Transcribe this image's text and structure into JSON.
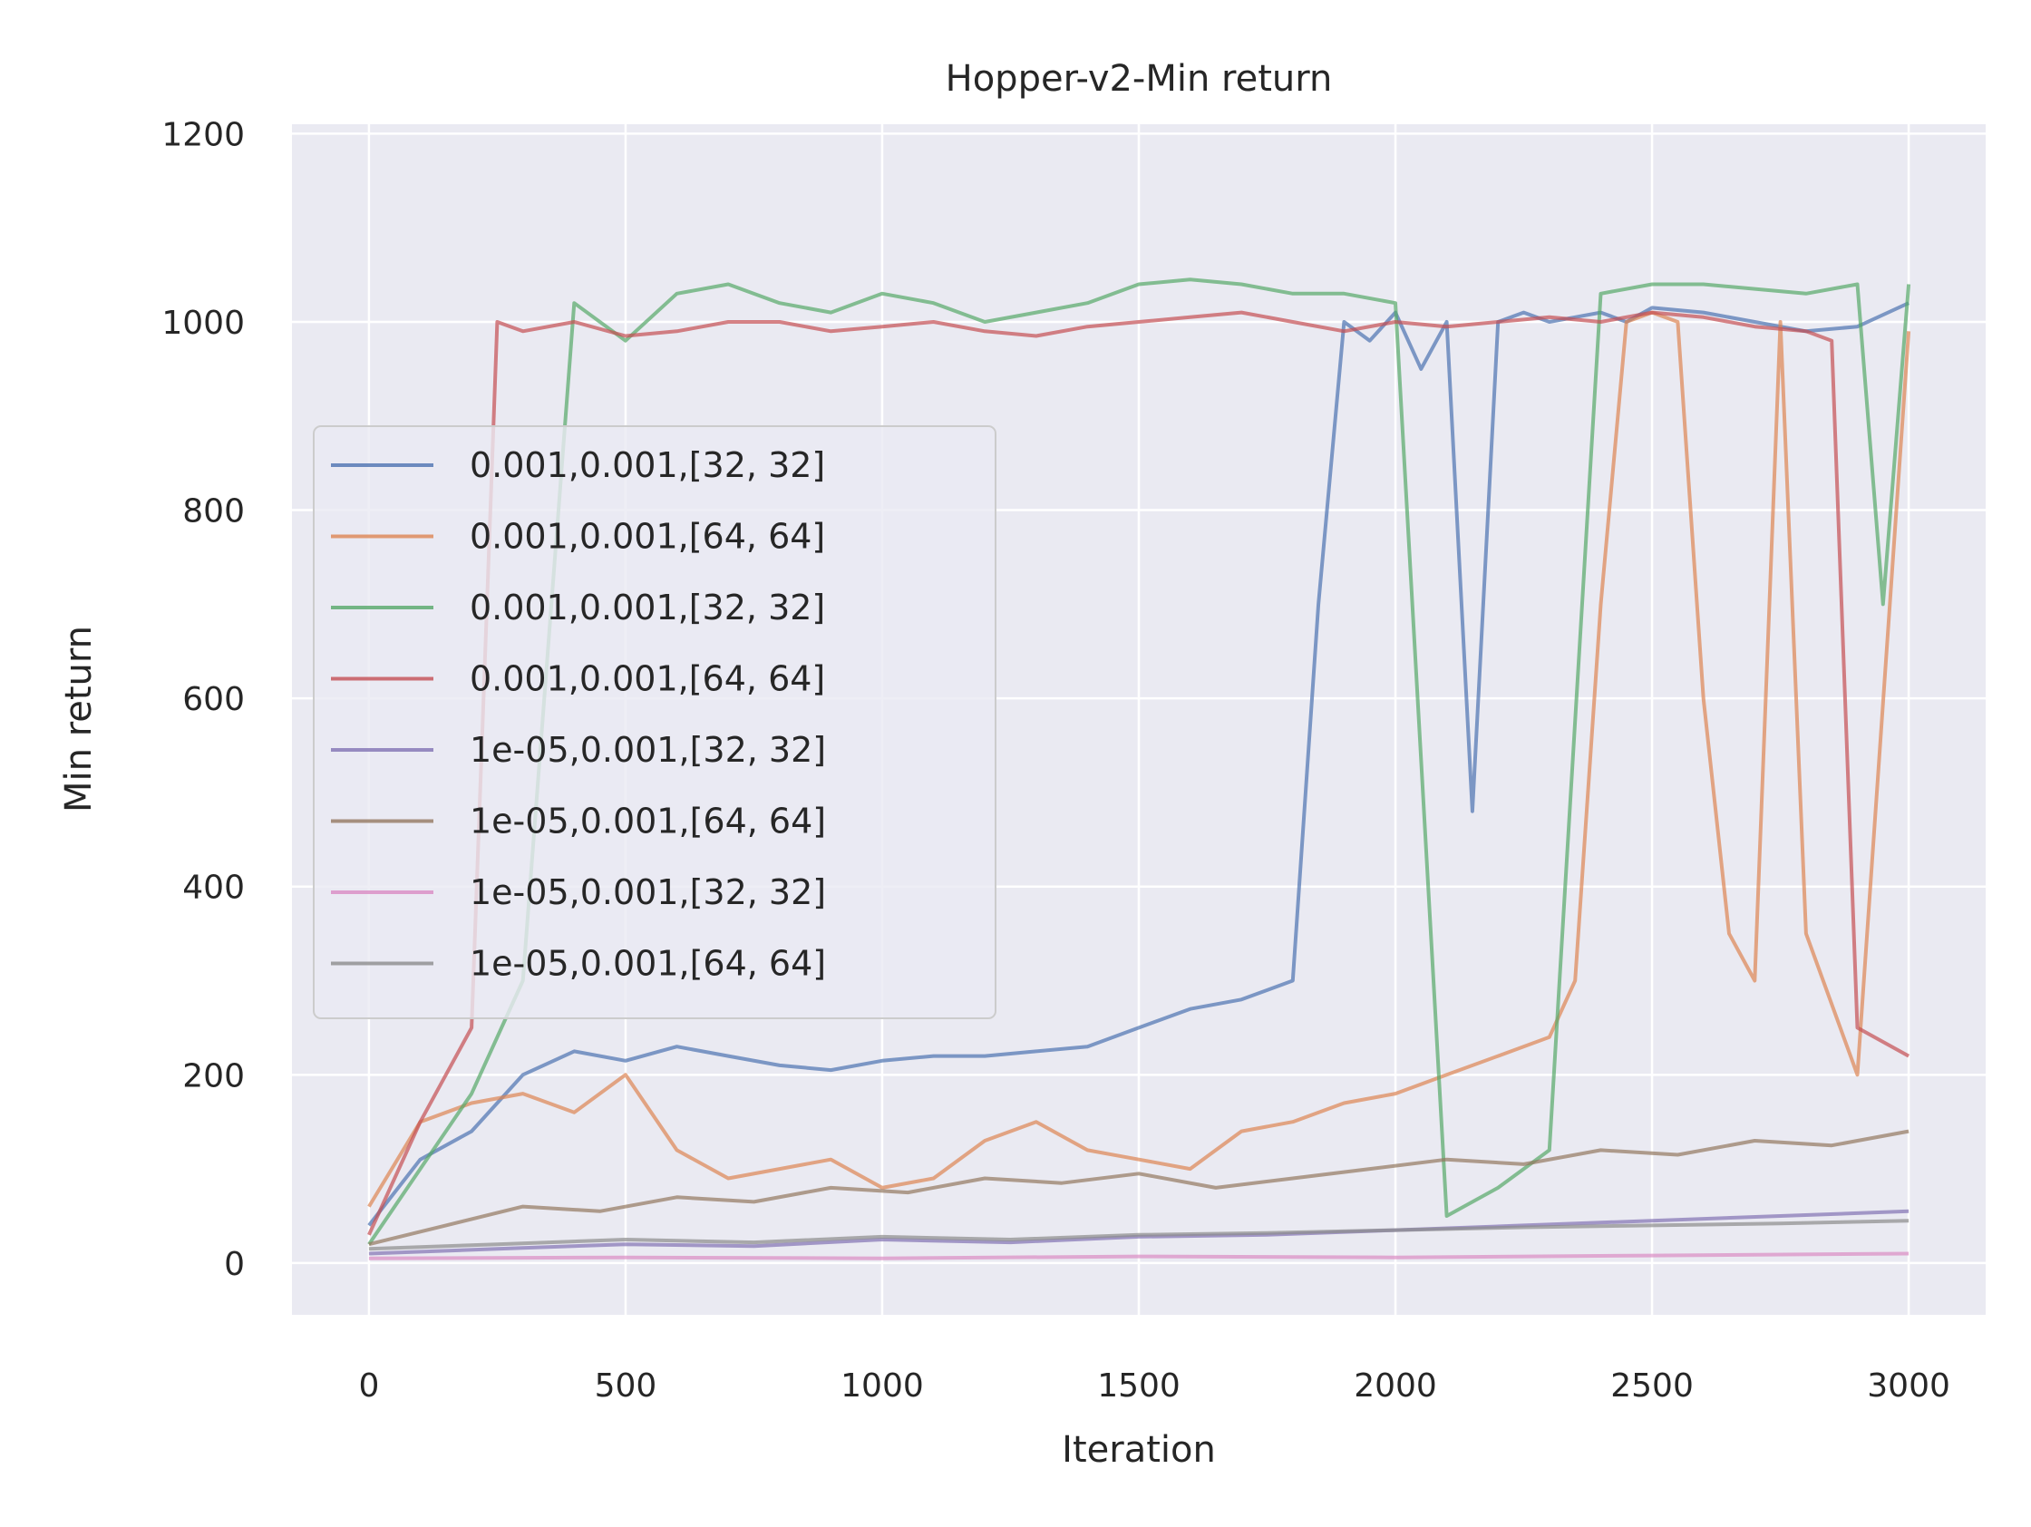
{
  "chart_data": {
    "type": "line",
    "title": "Hopper-v2-Min return",
    "xlabel": "Iteration",
    "ylabel": "Min return",
    "xlim": [
      -150,
      3150
    ],
    "ylim": [
      -55,
      1210
    ],
    "xticks": [
      0,
      500,
      1000,
      1500,
      2000,
      2500,
      3000
    ],
    "xtick_labels": [
      "0",
      "500",
      "1000",
      "1500",
      "2000",
      "2500",
      "3000"
    ],
    "yticks": [
      0,
      200,
      400,
      600,
      800,
      1000,
      1200
    ],
    "ytick_labels": [
      "0",
      "200",
      "400",
      "600",
      "800",
      "1000",
      "1200"
    ],
    "grid": true,
    "legend_position": "center-left",
    "series": [
      {
        "name": "0.001,0.001,[32, 32]",
        "color": "#4c72b0",
        "x": [
          0,
          100,
          200,
          300,
          400,
          500,
          600,
          700,
          800,
          900,
          1000,
          1100,
          1200,
          1300,
          1400,
          1500,
          1600,
          1700,
          1800,
          1850,
          1900,
          1950,
          2000,
          2050,
          2100,
          2150,
          2200,
          2250,
          2300,
          2350,
          2400,
          2450,
          2500,
          2600,
          2700,
          2800,
          2900,
          3000
        ],
        "y": [
          40,
          110,
          140,
          200,
          225,
          215,
          230,
          220,
          210,
          205,
          215,
          220,
          220,
          225,
          230,
          250,
          270,
          280,
          300,
          700,
          1000,
          980,
          1010,
          950,
          1000,
          480,
          1000,
          1010,
          1000,
          1005,
          1010,
          1000,
          1015,
          1010,
          1000,
          990,
          995,
          1020
        ]
      },
      {
        "name": "0.001,0.001,[64, 64]",
        "color": "#dd8452",
        "x": [
          0,
          100,
          200,
          300,
          400,
          500,
          600,
          700,
          800,
          900,
          1000,
          1100,
          1200,
          1300,
          1400,
          1500,
          1600,
          1700,
          1800,
          1900,
          2000,
          2100,
          2200,
          2300,
          2350,
          2400,
          2450,
          2500,
          2550,
          2600,
          2650,
          2700,
          2750,
          2800,
          2900,
          3000
        ],
        "y": [
          60,
          150,
          170,
          180,
          160,
          200,
          120,
          90,
          100,
          110,
          80,
          90,
          130,
          150,
          120,
          110,
          100,
          140,
          150,
          170,
          180,
          200,
          220,
          240,
          300,
          700,
          1000,
          1010,
          1000,
          600,
          350,
          300,
          1000,
          350,
          200,
          990
        ]
      },
      {
        "name": "0.001,0.001,[32, 32]",
        "color": "#55a868",
        "x": [
          0,
          100,
          200,
          300,
          400,
          500,
          600,
          700,
          800,
          900,
          1000,
          1100,
          1200,
          1300,
          1400,
          1500,
          1600,
          1700,
          1800,
          1900,
          2000,
          2100,
          2200,
          2300,
          2400,
          2500,
          2600,
          2700,
          2800,
          2900,
          2950,
          3000
        ],
        "y": [
          20,
          100,
          180,
          300,
          1020,
          980,
          1030,
          1040,
          1020,
          1010,
          1030,
          1020,
          1000,
          1010,
          1020,
          1040,
          1045,
          1040,
          1030,
          1030,
          1020,
          50,
          80,
          120,
          1030,
          1040,
          1040,
          1035,
          1030,
          1040,
          700,
          1040
        ]
      },
      {
        "name": "0.001,0.001,[64, 64]",
        "color": "#c44e52",
        "x": [
          0,
          100,
          200,
          250,
          300,
          400,
          500,
          600,
          700,
          800,
          900,
          1000,
          1100,
          1200,
          1300,
          1400,
          1500,
          1600,
          1700,
          1800,
          1900,
          2000,
          2100,
          2200,
          2300,
          2400,
          2500,
          2600,
          2700,
          2800,
          2850,
          2900,
          3000
        ],
        "y": [
          30,
          150,
          250,
          1000,
          990,
          1000,
          985,
          990,
          1000,
          1000,
          990,
          995,
          1000,
          990,
          985,
          995,
          1000,
          1005,
          1010,
          1000,
          990,
          1000,
          995,
          1000,
          1005,
          1000,
          1010,
          1005,
          995,
          990,
          980,
          250,
          220
        ]
      },
      {
        "name": "1e-05,0.001,[32, 32]",
        "color": "#8172b3",
        "x": [
          0,
          250,
          500,
          750,
          1000,
          1250,
          1500,
          1750,
          2000,
          2250,
          2500,
          2750,
          3000
        ],
        "y": [
          10,
          15,
          20,
          18,
          25,
          22,
          28,
          30,
          35,
          40,
          45,
          50,
          55
        ]
      },
      {
        "name": "1e-05,0.001,[64, 64]",
        "color": "#937860",
        "x": [
          0,
          150,
          300,
          450,
          600,
          750,
          900,
          1050,
          1200,
          1350,
          1500,
          1650,
          1800,
          1950,
          2100,
          2250,
          2400,
          2550,
          2700,
          2850,
          3000
        ],
        "y": [
          20,
          40,
          60,
          55,
          70,
          65,
          80,
          75,
          90,
          85,
          95,
          80,
          90,
          100,
          110,
          105,
          120,
          115,
          130,
          125,
          140
        ]
      },
      {
        "name": "1e-05,0.001,[32, 32]",
        "color": "#da8bc3",
        "x": [
          0,
          500,
          1000,
          1500,
          2000,
          2500,
          3000
        ],
        "y": [
          5,
          6,
          5,
          7,
          6,
          8,
          10
        ]
      },
      {
        "name": "1e-05,0.001,[64, 64]",
        "color": "#8c8c8c",
        "x": [
          0,
          250,
          500,
          750,
          1000,
          1250,
          1500,
          1750,
          2000,
          2250,
          2500,
          2750,
          3000
        ],
        "y": [
          15,
          20,
          25,
          22,
          28,
          25,
          30,
          32,
          35,
          38,
          40,
          42,
          45
        ]
      }
    ]
  }
}
